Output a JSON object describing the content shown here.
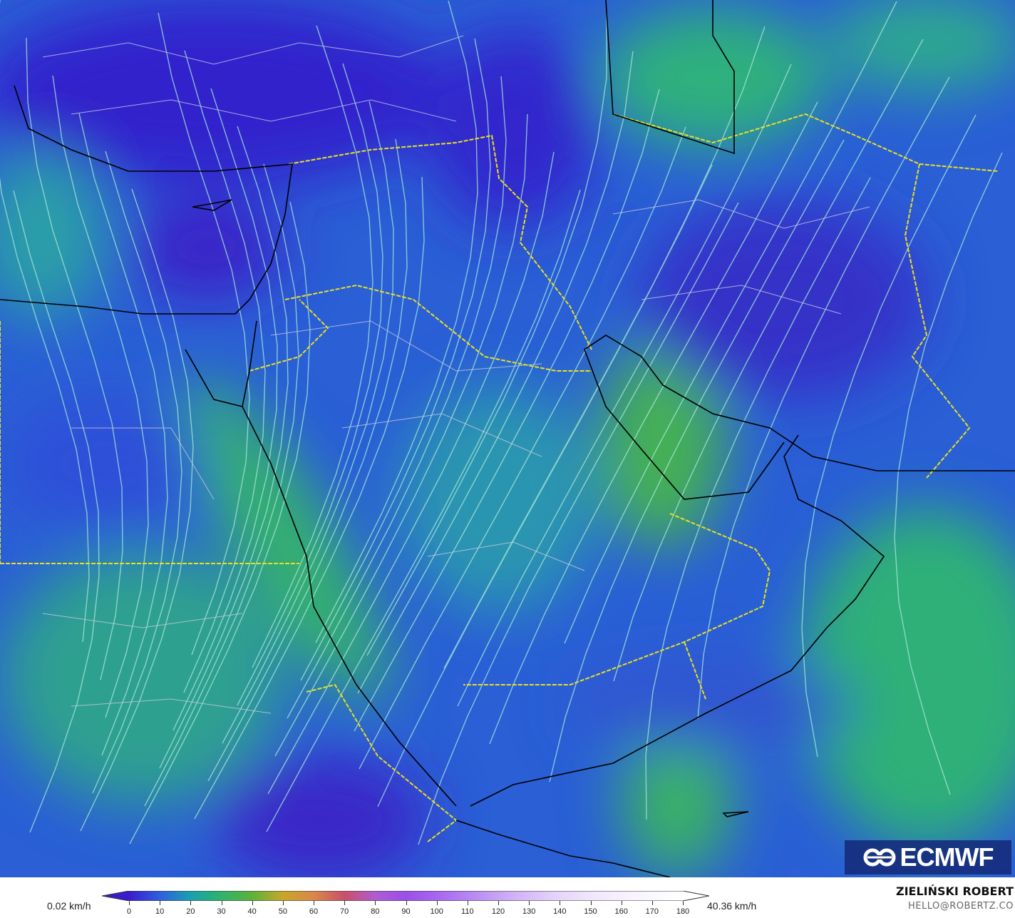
{
  "map": {
    "variable": "wind speed with streamlines",
    "colors": {
      "low": "#3a22c8",
      "mid": "#2a7fd8",
      "high": "#2fb37a",
      "border_country": "#e8e020",
      "border_admin": "#c8c8e0",
      "coast": "#000000",
      "streamline": "#a8e8d8"
    }
  },
  "logo": {
    "text": "ECMWF"
  },
  "legend": {
    "min_label": "0.02 km/h",
    "max_label": "40.36 km/h",
    "ticks": [
      "0",
      "10",
      "20",
      "30",
      "40",
      "50",
      "60",
      "70",
      "80",
      "90",
      "100",
      "110",
      "120",
      "130",
      "140",
      "150",
      "160",
      "170",
      "180"
    ],
    "stops": [
      "#3a1ccc",
      "#2e5fe0",
      "#1aa0b0",
      "#2fb36a",
      "#5cb23a",
      "#c8a62a",
      "#d9884a",
      "#c8506a",
      "#b05bd0",
      "#9a50e8",
      "#a866f0",
      "#b584f2",
      "#c8a4f5",
      "#d8bef8",
      "#e6d6fa",
      "#efe6fc",
      "#f6f0fd",
      "#fbf8fe",
      "#ffffff"
    ]
  },
  "credit": {
    "name": "ZIELIŃSKI ROBERT",
    "email": "HELLO@ROBERTZ.CO"
  }
}
